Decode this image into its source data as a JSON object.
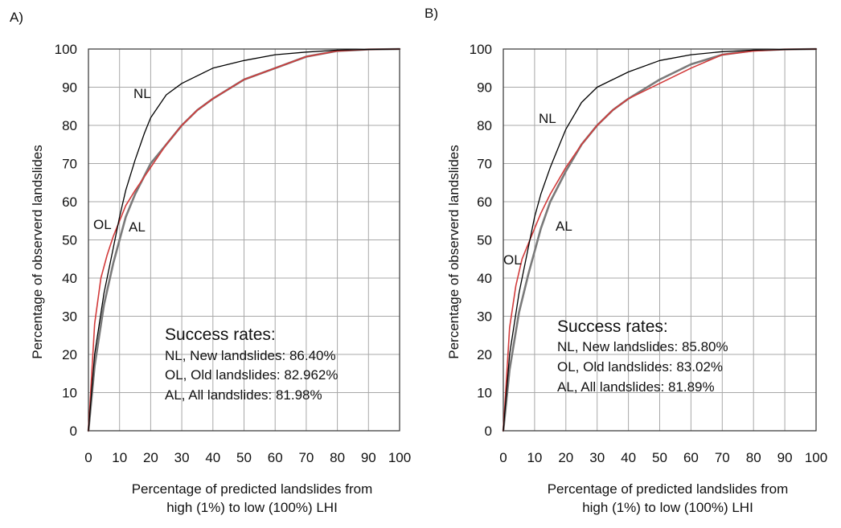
{
  "chart_data": [
    {
      "panel_label": "A)",
      "type": "line",
      "xlabel_line1": "Percentage of predicted landslides from",
      "xlabel_line2": "high (1%) to low (100%)  LHI",
      "ylabel": "Percentage of observerd landslides",
      "xlim": [
        0,
        100
      ],
      "ylim": [
        0,
        100
      ],
      "xticks": [
        "0",
        "10",
        "20",
        "30",
        "40",
        "50",
        "60",
        "70",
        "80",
        "90",
        "100"
      ],
      "yticks": [
        "0",
        "10",
        "20",
        "30",
        "40",
        "50",
        "60",
        "70",
        "80",
        "90",
        "100"
      ],
      "grid": true,
      "legend_title": "Success rates:",
      "legend_lines": [
        "NL, New landslides: 86.40%",
        "OL, Old landslides: 82.962%",
        "AL, All landslides: 81.98%"
      ],
      "curve_labels": [
        "NL",
        "OL",
        "AL"
      ],
      "series": [
        {
          "name": "NL",
          "color": "#000000",
          "x": [
            0,
            2,
            5,
            8,
            10,
            12,
            15,
            18,
            20,
            25,
            30,
            35,
            40,
            50,
            60,
            70,
            80,
            90,
            100
          ],
          "y": [
            0,
            20,
            36,
            48,
            56,
            63,
            71,
            78,
            82,
            88,
            91,
            93,
            95,
            97,
            98.5,
            99.2,
            99.7,
            99.9,
            100
          ]
        },
        {
          "name": "OL",
          "color": "#d23b3b",
          "x": [
            0,
            2,
            4,
            6,
            8,
            10,
            12,
            15,
            20,
            25,
            30,
            35,
            40,
            50,
            60,
            70,
            80,
            90,
            100
          ],
          "y": [
            0,
            28,
            40,
            46,
            51,
            55,
            59,
            63,
            69,
            75,
            80,
            84,
            87,
            92,
            95,
            98,
            99.5,
            99.9,
            100
          ]
        },
        {
          "name": "AL",
          "color": "#7a7a7a",
          "x": [
            0,
            2,
            5,
            8,
            10,
            12,
            15,
            20,
            25,
            30,
            35,
            40,
            50,
            60,
            70,
            80,
            90,
            100
          ],
          "y": [
            0,
            17,
            33,
            44,
            50,
            56,
            62,
            70,
            75,
            80,
            84,
            87,
            92,
            95,
            98,
            99.5,
            99.9,
            100
          ]
        }
      ]
    },
    {
      "panel_label": "B)",
      "type": "line",
      "xlabel_line1": "Percentage of predicted landslides from",
      "xlabel_line2": "high (1%) to low (100%)  LHI",
      "ylabel": "Percentage of observerd landslides",
      "xlim": [
        0,
        100
      ],
      "ylim": [
        0,
        100
      ],
      "xticks": [
        "0",
        "10",
        "20",
        "30",
        "40",
        "50",
        "60",
        "70",
        "80",
        "90",
        "100"
      ],
      "yticks": [
        "0",
        "10",
        "20",
        "30",
        "40",
        "50",
        "60",
        "70",
        "80",
        "90",
        "100"
      ],
      "grid": true,
      "legend_title": "Success rates:",
      "legend_lines": [
        "NL, New landslides: 85.80%",
        "OL, Old landslides: 83.02%",
        "AL, All landslides: 81.89%"
      ],
      "curve_labels": [
        "NL",
        "OL",
        "AL"
      ],
      "series": [
        {
          "name": "NL",
          "color": "#000000",
          "x": [
            0,
            2,
            5,
            8,
            10,
            12,
            15,
            18,
            20,
            25,
            30,
            35,
            40,
            50,
            60,
            70,
            80,
            90,
            100
          ],
          "y": [
            0,
            20,
            36,
            48,
            56,
            62,
            69,
            75,
            79,
            86,
            90,
            92,
            94,
            97,
            98.5,
            99.3,
            99.7,
            99.9,
            100
          ]
        },
        {
          "name": "OL",
          "color": "#d23b3b",
          "x": [
            0,
            2,
            4,
            6,
            8,
            10,
            12,
            15,
            20,
            25,
            30,
            35,
            40,
            50,
            60,
            70,
            80,
            90,
            100
          ],
          "y": [
            0,
            27,
            38,
            45,
            49,
            53,
            57,
            62,
            69,
            75,
            80,
            84,
            87,
            91,
            95,
            98.5,
            99.5,
            99.9,
            100
          ]
        },
        {
          "name": "AL",
          "color": "#7a7a7a",
          "x": [
            0,
            2,
            5,
            8,
            10,
            12,
            15,
            20,
            25,
            30,
            35,
            40,
            50,
            60,
            70,
            80,
            90,
            100
          ],
          "y": [
            0,
            16,
            31,
            41,
            47,
            53,
            60,
            68,
            75,
            80,
            84,
            87,
            92,
            96,
            98.5,
            99.6,
            99.9,
            100
          ]
        }
      ]
    }
  ]
}
